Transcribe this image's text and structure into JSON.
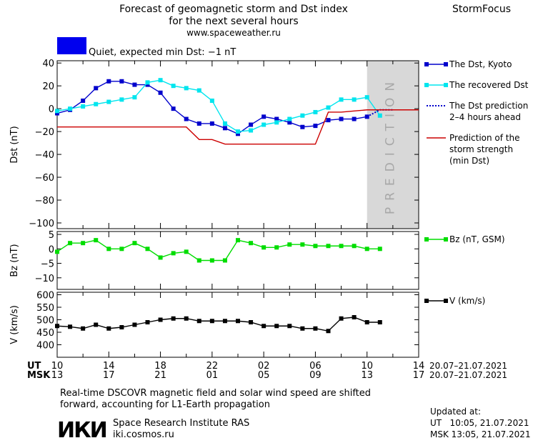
{
  "header": {
    "title_line1": "Forecast of geomagnetic storm and Dst index",
    "title_line2": "for the next several hours",
    "url": "www.spaceweather.ru",
    "brand": "StormFocus",
    "status_text": "Quiet, expected min Dst: −1 nT",
    "status_color": "#0000ee"
  },
  "footer": {
    "note_line1": "Real-time DSCOVR magnetic field and solar wind speed are shifted",
    "note_line2": "forward, accounting for L1-Earth propagation",
    "institute": "Space Research Institute RAS",
    "website": "iki.cosmos.ru",
    "logo_text": "ИКИ",
    "updated_label": "Updated at:",
    "updated_ut": "UT   10:05, 21.07.2021",
    "updated_msk": "MSK 13:05, 21.07.2021"
  },
  "chart_data": {
    "type": "line",
    "time_axis": {
      "ut_label": "UT",
      "msk_label": "MSK",
      "ut_ticks": [
        "10",
        "14",
        "18",
        "22",
        "02",
        "06",
        "10",
        "14"
      ],
      "msk_ticks": [
        "13",
        "17",
        "21",
        "01",
        "05",
        "09",
        "13",
        "17"
      ],
      "date_range": "20.07–21.07.2021"
    },
    "prediction_label": "PREDICTION",
    "panels": [
      {
        "id": "dst",
        "ylabel": "Dst (nT)",
        "ylim": [
          -105,
          42
        ],
        "yticks": [
          40,
          20,
          0,
          -20,
          -40,
          -60,
          -80,
          -100
        ],
        "series": [
          {
            "name": "The Dst, Kyoto",
            "color": "#0000cc",
            "marker": "square",
            "style": "solid",
            "x": [
              10,
              11,
              12,
              13,
              14,
              15,
              16,
              17,
              18,
              19,
              20,
              21,
              22,
              23,
              24,
              25,
              26,
              27,
              28,
              29,
              30,
              31,
              32,
              33,
              34
            ],
            "y": [
              -4,
              -1,
              7,
              18,
              24,
              24,
              21,
              21,
              14,
              0,
              -9,
              -13,
              -13,
              -17,
              -22,
              -14,
              -7,
              -9,
              -12,
              -16,
              -15,
              -10,
              -9,
              -9,
              -7
            ]
          },
          {
            "name": "The recovered Dst",
            "color": "#00e5ee",
            "marker": "square",
            "style": "solid",
            "x": [
              10,
              11,
              12,
              13,
              14,
              15,
              16,
              17,
              18,
              19,
              20,
              21,
              22,
              23,
              24,
              25,
              26,
              27,
              28,
              29,
              30,
              31,
              32,
              33,
              34,
              35
            ],
            "y": [
              -2,
              0,
              2,
              4,
              6,
              8,
              10,
              23,
              25,
              20,
              18,
              16,
              7,
              -13,
              -20,
              -19,
              -14,
              -12,
              -9,
              -6,
              -3,
              1,
              8,
              8,
              10,
              -6
            ]
          },
          {
            "name": "The Dst prediction",
            "legend_line2": "2–4 hours ahead",
            "color": "#0000cc",
            "marker": "none",
            "style": "dotted",
            "x": [
              34,
              35,
              36
            ],
            "y": [
              -7,
              -1,
              -1
            ]
          },
          {
            "name": "Prediction of the",
            "legend_line2": "storm strength",
            "legend_line3": "(min Dst)",
            "color": "#cc0000",
            "marker": "none",
            "style": "solid",
            "x": [
              10,
              20,
              21,
              22,
              23,
              24,
              25,
              26,
              27,
              28,
              29,
              30,
              31,
              32,
              33,
              34,
              35,
              36,
              37,
              38
            ],
            "y": [
              -16,
              -16,
              -27,
              -27,
              -31,
              -31,
              -31,
              -31,
              -31,
              -31,
              -31,
              -31,
              -3,
              -3,
              -2,
              -1,
              -1,
              -1,
              -1,
              -1
            ]
          }
        ]
      },
      {
        "id": "bz",
        "ylabel": "Bz (nT)",
        "ylim": [
          -14,
          6
        ],
        "yticks": [
          5,
          0,
          -5,
          -10
        ],
        "series": [
          {
            "name": "Bz (nT, GSM)",
            "color": "#00dd00",
            "marker": "square",
            "style": "solid",
            "x": [
              10,
              11,
              12,
              13,
              14,
              15,
              16,
              17,
              18,
              19,
              20,
              21,
              22,
              23,
              24,
              25,
              26,
              27,
              28,
              29,
              30,
              31,
              32,
              33,
              34,
              35
            ],
            "y": [
              -1,
              2,
              2,
              3,
              0,
              0,
              2,
              0,
              -3,
              -1.5,
              -1,
              -4,
              -4,
              -4,
              3,
              2,
              0.5,
              0.5,
              1.5,
              1.5,
              1,
              1,
              1,
              1,
              0,
              0
            ]
          }
        ]
      },
      {
        "id": "v",
        "ylabel": "V (km/s)",
        "ylim": [
          350,
          610
        ],
        "yticks": [
          600,
          550,
          500,
          450,
          400
        ],
        "series": [
          {
            "name": "V (km/s)",
            "color": "#000000",
            "marker": "square",
            "style": "solid",
            "x": [
              10,
              11,
              12,
              13,
              14,
              15,
              16,
              17,
              18,
              19,
              20,
              21,
              22,
              23,
              24,
              25,
              26,
              27,
              28,
              29,
              30,
              31,
              32,
              33,
              34,
              35
            ],
            "y": [
              475,
              472,
              465,
              480,
              465,
              470,
              480,
              490,
              500,
              505,
              505,
              495,
              495,
              495,
              495,
              490,
              475,
              475,
              475,
              465,
              465,
              455,
              505,
              510,
              490,
              490
            ]
          }
        ]
      }
    ]
  }
}
